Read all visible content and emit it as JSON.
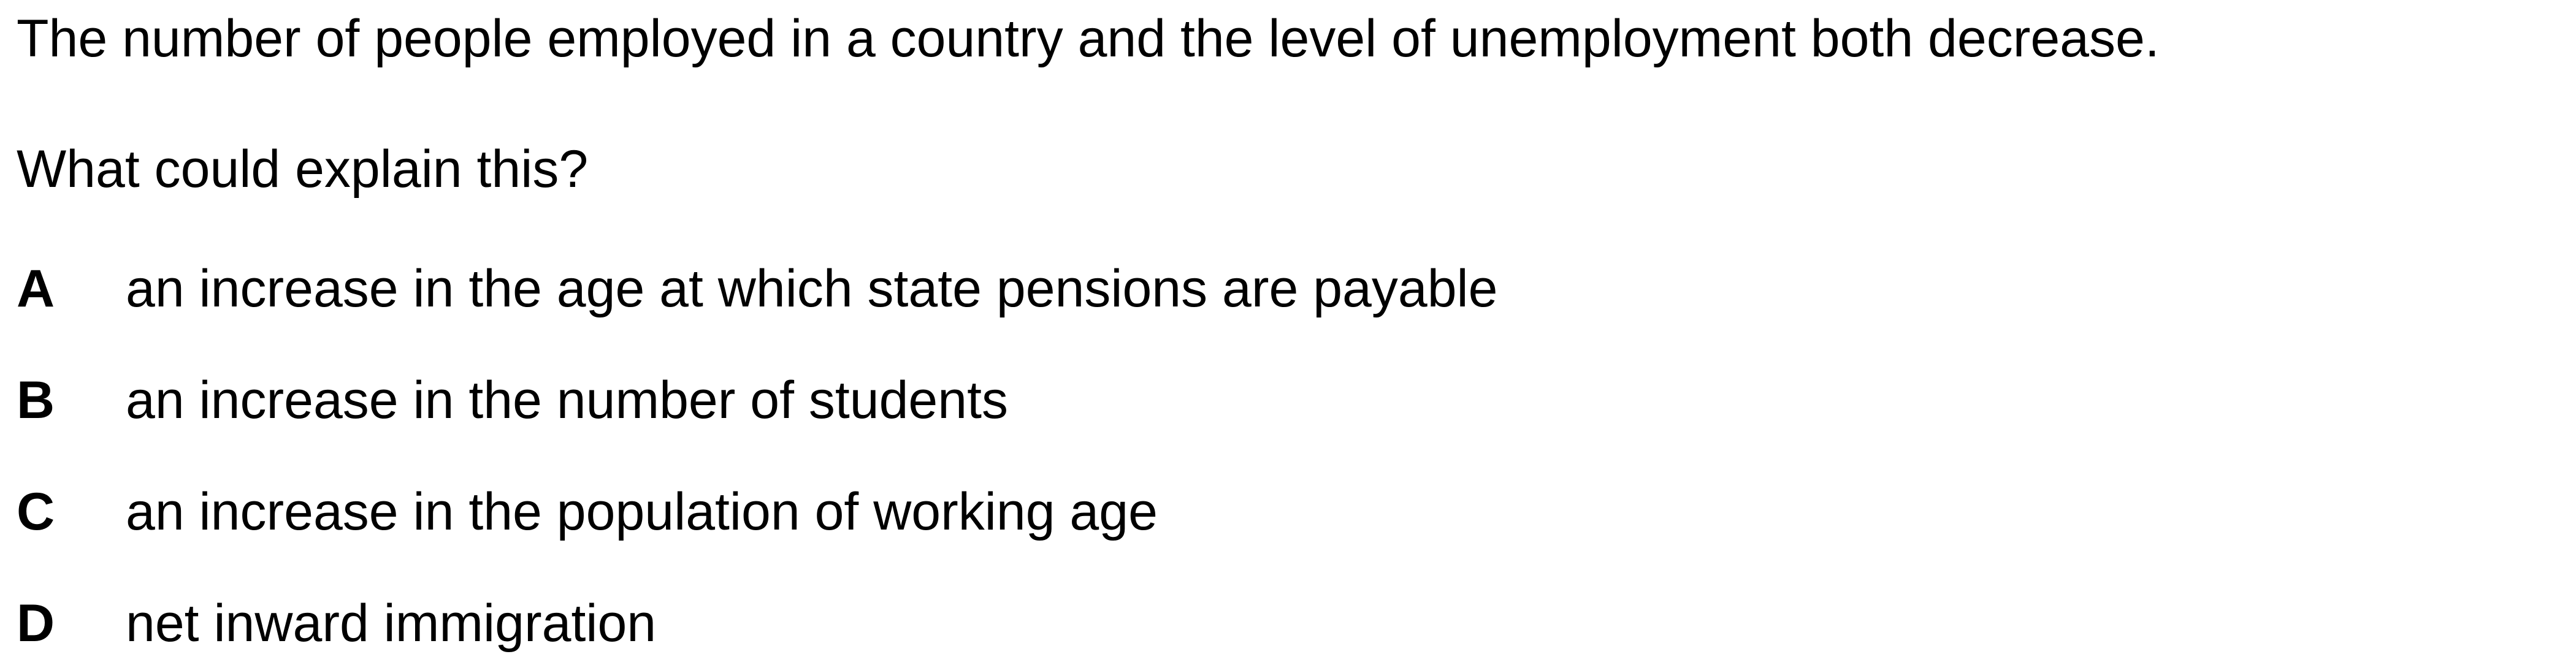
{
  "question": {
    "statement": "The number of people employed in a country and the level of unemployment both decrease.",
    "prompt": "What could explain this?",
    "options": [
      {
        "letter": "A",
        "text": "an increase in the age at which state pensions are payable"
      },
      {
        "letter": "B",
        "text": "an increase in the number of students"
      },
      {
        "letter": "C",
        "text": "an increase in the population of working age"
      },
      {
        "letter": "D",
        "text": "net inward immigration"
      }
    ]
  }
}
